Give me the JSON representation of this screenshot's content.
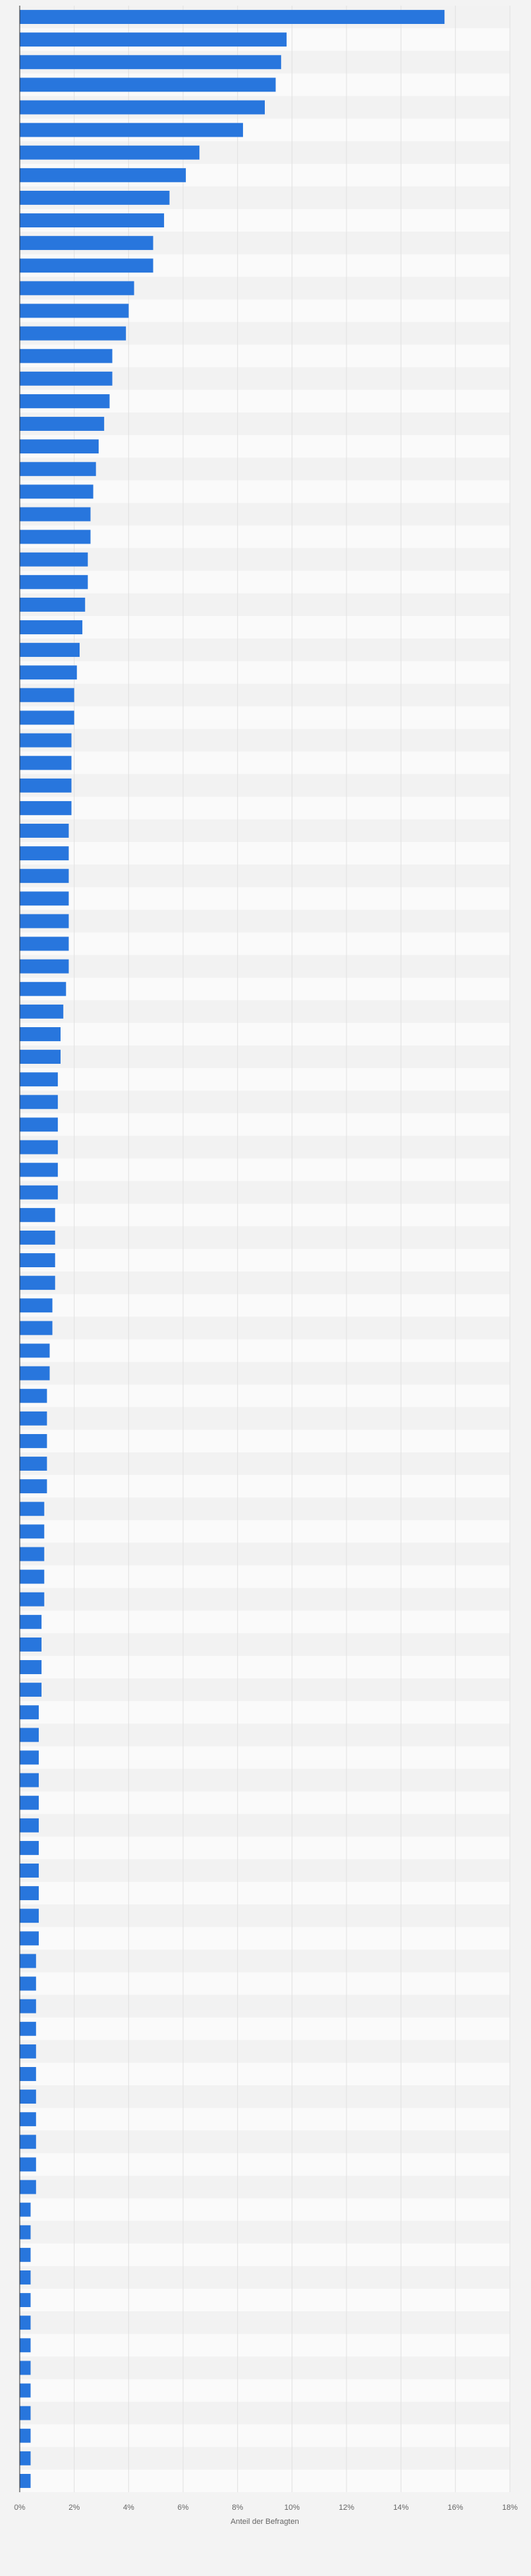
{
  "chart_data": {
    "type": "hbar",
    "orientation": "horizontal",
    "xlabel": "Anteil der Befragten",
    "categories": [
      null,
      null,
      null,
      null,
      null,
      null,
      null,
      null,
      null,
      null,
      null,
      null,
      null,
      null,
      null,
      null,
      null,
      null,
      null,
      null,
      null,
      null,
      null,
      null,
      null,
      null,
      null,
      null,
      null,
      null,
      null,
      null,
      null,
      null,
      null,
      null,
      null,
      null,
      null,
      null,
      null,
      null,
      null,
      null,
      null,
      null,
      null,
      null,
      null,
      null,
      null,
      null,
      null,
      null,
      null,
      null,
      null,
      null,
      null,
      null,
      null,
      null,
      null,
      null,
      null,
      null,
      null,
      null,
      null,
      null,
      null,
      null,
      null,
      null,
      null,
      null,
      null,
      null,
      null,
      null,
      null,
      null,
      null,
      null,
      null,
      null,
      null,
      null,
      null,
      null,
      null,
      null,
      null,
      null,
      null,
      null,
      null,
      null,
      null,
      null,
      null,
      null,
      null,
      null,
      null,
      null,
      null,
      null,
      null,
      null
    ],
    "values": [
      15.6,
      9.8,
      9.6,
      9.4,
      9.0,
      8.2,
      6.6,
      6.1,
      5.5,
      5.3,
      4.9,
      4.9,
      4.2,
      4.0,
      3.9,
      3.4,
      3.4,
      3.3,
      3.1,
      2.9,
      2.8,
      2.7,
      2.6,
      2.6,
      2.5,
      2.5,
      2.4,
      2.3,
      2.2,
      2.1,
      2.0,
      2.0,
      1.9,
      1.9,
      1.9,
      1.9,
      1.8,
      1.8,
      1.8,
      1.8,
      1.8,
      1.8,
      1.8,
      1.7,
      1.6,
      1.5,
      1.5,
      1.4,
      1.4,
      1.4,
      1.4,
      1.4,
      1.4,
      1.3,
      1.3,
      1.3,
      1.3,
      1.2,
      1.2,
      1.1,
      1.1,
      1.0,
      1.0,
      1.0,
      1.0,
      1.0,
      0.9,
      0.9,
      0.9,
      0.9,
      0.9,
      0.8,
      0.8,
      0.8,
      0.8,
      0.7,
      0.7,
      0.7,
      0.7,
      0.7,
      0.7,
      0.7,
      0.7,
      0.7,
      0.7,
      0.7,
      0.6,
      0.6,
      0.6,
      0.6,
      0.6,
      0.6,
      0.6,
      0.6,
      0.6,
      0.6,
      0.6,
      0.4,
      0.4,
      0.4,
      0.4,
      0.4,
      0.4,
      0.4,
      0.4,
      0.4,
      0.4,
      0.4,
      0.4,
      0.4
    ],
    "color": "#2876dd",
    "xlim": [
      0,
      18
    ],
    "xticks": [
      {
        "value": 0,
        "label": "0%"
      },
      {
        "value": 2,
        "label": "2%"
      },
      {
        "value": 4,
        "label": "4%"
      },
      {
        "value": 6,
        "label": "6%"
      },
      {
        "value": 8,
        "label": "8%"
      },
      {
        "value": 10,
        "label": "10%"
      },
      {
        "value": 12,
        "label": "12%"
      },
      {
        "value": 14,
        "label": "14%"
      },
      {
        "value": 16,
        "label": "16%"
      },
      {
        "value": 18,
        "label": "18%"
      }
    ],
    "grid": true
  }
}
